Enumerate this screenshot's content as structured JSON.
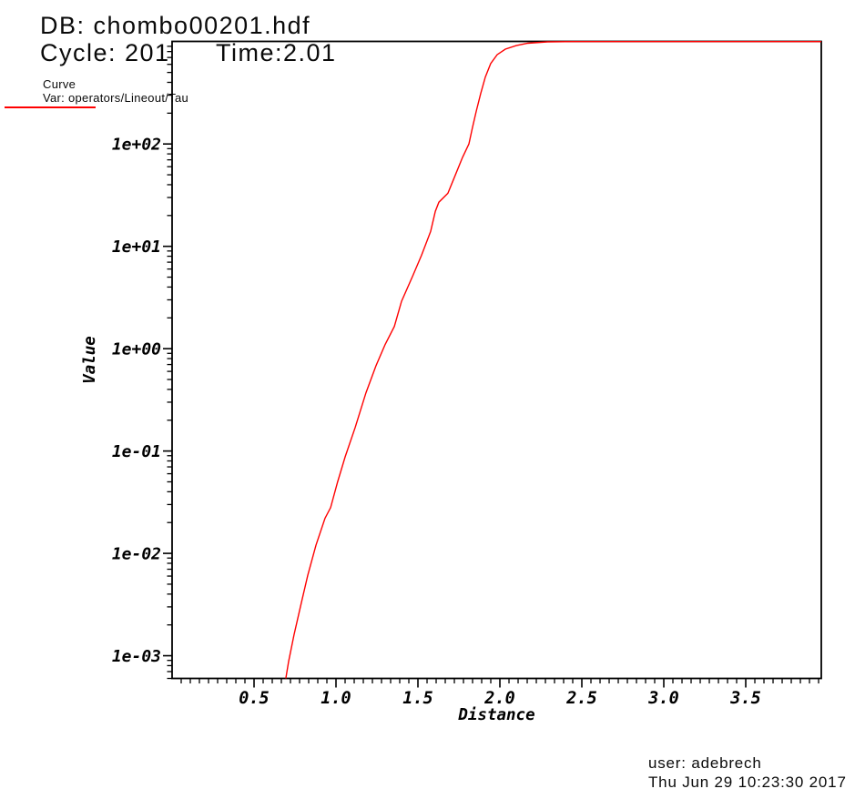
{
  "header": {
    "db_line": "DB: chombo00201.hdf",
    "cycle_label": "Cycle: 201",
    "time_label": "Time:2.01"
  },
  "legend": {
    "plot_type": "Curve",
    "var_label": "Var: operators/Lineout/Tau",
    "line_color": "#ff0000"
  },
  "footer": {
    "user_line": "user: adebrech",
    "timestamp_line": "Thu Jun 29 10:23:30 2017"
  },
  "chart_data": {
    "type": "line",
    "title": "",
    "xlabel": "Distance",
    "ylabel": "Value",
    "x_scale": "linear",
    "y_scale": "log",
    "xlim": [
      0,
      3.961
    ],
    "ylim": [
      0.0006,
      1005
    ],
    "grid": false,
    "legend_position": "top-left-outside",
    "axis_color": "#000000",
    "x_ticks": {
      "values": [
        0.5,
        1.0,
        1.5,
        2.0,
        2.5,
        3.0,
        3.5
      ],
      "labels": [
        "0.5",
        "1.0",
        "1.5",
        "2.0",
        "2.5",
        "3.0",
        "3.5"
      ],
      "minor_step": 0.0555556
    },
    "y_ticks": {
      "values": [
        100,
        10,
        1,
        0.1,
        0.01,
        0.001
      ],
      "labels": [
        "1e+02",
        "1e+01",
        "1e+00",
        "1e-01",
        "1e-02",
        "1e-03"
      ],
      "minor_mantissas": [
        2,
        3,
        4,
        5,
        6,
        7,
        8,
        9
      ],
      "minor_decades": [
        -4,
        -3,
        -2,
        -1,
        0,
        1,
        2
      ]
    },
    "series": [
      {
        "name": "operators/Lineout/Tau",
        "color": "#ff0000",
        "points": [
          [
            0.694,
            0.0006
          ],
          [
            0.711,
            0.00088
          ],
          [
            0.744,
            0.0016
          ],
          [
            0.789,
            0.0033
          ],
          [
            0.828,
            0.0061
          ],
          [
            0.878,
            0.012
          ],
          [
            0.933,
            0.022
          ],
          [
            0.967,
            0.028
          ],
          [
            1.01,
            0.05
          ],
          [
            1.056,
            0.088
          ],
          [
            1.117,
            0.17
          ],
          [
            1.183,
            0.37
          ],
          [
            1.244,
            0.68
          ],
          [
            1.3,
            1.1
          ],
          [
            1.356,
            1.65
          ],
          [
            1.4,
            2.9
          ],
          [
            1.467,
            5.1
          ],
          [
            1.522,
            8.2
          ],
          [
            1.578,
            14
          ],
          [
            1.606,
            22
          ],
          [
            1.628,
            27
          ],
          [
            1.683,
            33
          ],
          [
            1.717,
            45
          ],
          [
            1.772,
            74
          ],
          [
            1.811,
            100
          ],
          [
            1.833,
            145
          ],
          [
            1.856,
            210
          ],
          [
            1.883,
            310
          ],
          [
            1.911,
            450
          ],
          [
            1.944,
            610
          ],
          [
            1.983,
            745
          ],
          [
            2.033,
            845
          ],
          [
            2.1,
            915
          ],
          [
            2.17,
            965
          ],
          [
            2.29,
            995
          ],
          [
            2.45,
            1000
          ],
          [
            3.961,
            1000
          ]
        ]
      }
    ]
  }
}
